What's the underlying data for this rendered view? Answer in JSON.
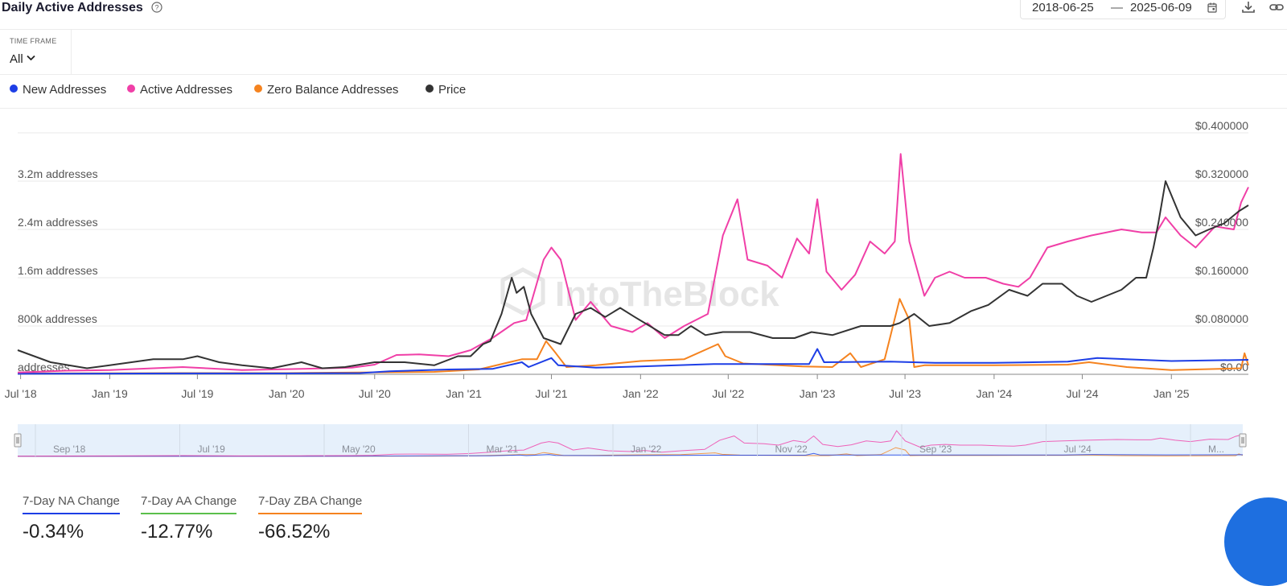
{
  "header": {
    "title": "Daily Active Addresses",
    "date_start": "2018-06-25",
    "date_separator": "—",
    "date_end": "2025-06-09"
  },
  "filters": {
    "time_frame_label": "TIME FRAME",
    "time_frame_value": "All"
  },
  "legend": [
    {
      "label": "New Addresses",
      "color": "#1d3ee6"
    },
    {
      "label": "Active Addresses",
      "color": "#f03fa7"
    },
    {
      "label": "Zero Balance Addresses",
      "color": "#f5831f"
    },
    {
      "label": "Price",
      "color": "#333333"
    }
  ],
  "watermark": "IntoTheBlock",
  "chart_data": {
    "type": "line",
    "x_tick_labels": [
      "Jul '18",
      "Jan '19",
      "Jul '19",
      "Jan '20",
      "Jul '20",
      "Jan '21",
      "Jul '21",
      "Jan '22",
      "Jul '22",
      "Jan '23",
      "Jul '23",
      "Jan '24",
      "Jul '24",
      "Jan '25"
    ],
    "y_left_tick_labels": [
      "addresses",
      "800k addresses",
      "1.6m addresses",
      "2.4m addresses",
      "3.2m addresses"
    ],
    "y_left_range": [
      0,
      4000000
    ],
    "y_right_tick_labels": [
      "$0.00",
      "$0.080000",
      "$0.160000",
      "$0.240000",
      "$0.320000",
      "$0.400000"
    ],
    "y_right_range": [
      0,
      0.4
    ],
    "x_range": [
      "2018-06-25",
      "2025-06-09"
    ],
    "grid": true,
    "legend_position": "top-left",
    "series": [
      {
        "name": "Active Addresses",
        "axis": "left",
        "x": [
          "2018-06-25",
          "2018-10-01",
          "2019-01-01",
          "2019-06-01",
          "2019-10-01",
          "2020-02-01",
          "2020-05-15",
          "2020-07-01",
          "2020-08-15",
          "2020-10-01",
          "2020-12-01",
          "2021-01-15",
          "2021-03-01",
          "2021-04-15",
          "2021-05-10",
          "2021-06-15",
          "2021-07-01",
          "2021-07-20",
          "2021-08-20",
          "2021-09-20",
          "2021-11-01",
          "2021-12-15",
          "2022-01-15",
          "2022-02-20",
          "2022-04-01",
          "2022-05-20",
          "2022-06-20",
          "2022-07-20",
          "2022-08-10",
          "2022-09-20",
          "2022-10-20",
          "2022-11-20",
          "2022-12-15",
          "2023-01-01",
          "2023-01-20",
          "2023-02-20",
          "2023-03-20",
          "2023-04-20",
          "2023-05-20",
          "2023-06-10",
          "2023-06-22",
          "2023-07-10",
          "2023-08-10",
          "2023-09-01",
          "2023-10-01",
          "2023-11-01",
          "2023-12-15",
          "2024-01-20",
          "2024-02-20",
          "2024-03-15",
          "2024-04-20",
          "2024-06-01",
          "2024-07-20",
          "2024-09-20",
          "2024-11-01",
          "2024-12-01",
          "2024-12-20",
          "2025-01-20",
          "2025-02-20",
          "2025-04-01",
          "2025-05-10",
          "2025-05-25",
          "2025-06-09"
        ],
        "y": [
          30000,
          60000,
          70000,
          120000,
          70000,
          90000,
          110000,
          160000,
          320000,
          330000,
          300000,
          400000,
          600000,
          850000,
          900000,
          1900000,
          2100000,
          1900000,
          900000,
          1200000,
          800000,
          700000,
          850000,
          600000,
          800000,
          1000000,
          2300000,
          2900000,
          1900000,
          1800000,
          1600000,
          2250000,
          2000000,
          2900000,
          1700000,
          1400000,
          1650000,
          2200000,
          2000000,
          2200000,
          3650000,
          2200000,
          1300000,
          1600000,
          1700000,
          1600000,
          1600000,
          1500000,
          1450000,
          1600000,
          2100000,
          2200000,
          2300000,
          2400000,
          2350000,
          2350000,
          2600000,
          2300000,
          2100000,
          2450000,
          2400000,
          2850000,
          3100000
        ]
      },
      {
        "name": "New Addresses",
        "axis": "left",
        "x": [
          "2018-06-25",
          "2019-06-01",
          "2020-01-01",
          "2020-06-01",
          "2020-08-01",
          "2020-12-01",
          "2021-03-01",
          "2021-05-01",
          "2021-05-15",
          "2021-07-01",
          "2021-07-15",
          "2021-10-01",
          "2022-01-01",
          "2022-06-01",
          "2022-12-15",
          "2023-01-01",
          "2023-01-15",
          "2023-06-01",
          "2023-09-01",
          "2024-01-01",
          "2024-06-01",
          "2024-08-01",
          "2025-01-01",
          "2025-06-09"
        ],
        "y": [
          10000,
          15000,
          15000,
          20000,
          50000,
          80000,
          90000,
          200000,
          120000,
          270000,
          150000,
          110000,
          130000,
          170000,
          170000,
          420000,
          200000,
          210000,
          190000,
          190000,
          210000,
          270000,
          220000,
          240000
        ]
      },
      {
        "name": "Zero Balance Addresses",
        "axis": "left",
        "x": [
          "2018-06-25",
          "2019-06-01",
          "2020-01-01",
          "2020-06-01",
          "2020-11-01",
          "2021-02-01",
          "2021-05-01",
          "2021-06-01",
          "2021-06-20",
          "2021-07-10",
          "2021-08-01",
          "2021-10-01",
          "2022-01-01",
          "2022-04-01",
          "2022-06-10",
          "2022-06-25",
          "2022-08-01",
          "2022-12-01",
          "2023-02-01",
          "2023-03-10",
          "2023-04-01",
          "2023-05-20",
          "2023-06-20",
          "2023-07-10",
          "2023-07-20",
          "2023-08-10",
          "2024-01-01",
          "2024-06-01",
          "2024-07-15",
          "2024-10-01",
          "2025-01-01",
          "2025-05-25",
          "2025-06-01",
          "2025-06-09"
        ],
        "y": [
          15000,
          20000,
          20000,
          30000,
          40000,
          80000,
          250000,
          250000,
          550000,
          350000,
          120000,
          150000,
          220000,
          250000,
          500000,
          300000,
          180000,
          130000,
          120000,
          350000,
          120000,
          250000,
          1250000,
          900000,
          120000,
          150000,
          150000,
          160000,
          200000,
          120000,
          70000,
          100000,
          350000,
          150000
        ]
      },
      {
        "name": "Price",
        "axis": "right",
        "x": [
          "2018-06-25",
          "2018-09-01",
          "2018-11-15",
          "2019-01-01",
          "2019-04-01",
          "2019-06-01",
          "2019-07-01",
          "2019-08-15",
          "2019-10-01",
          "2019-12-01",
          "2020-02-01",
          "2020-03-15",
          "2020-05-01",
          "2020-07-01",
          "2020-09-01",
          "2020-11-01",
          "2020-12-20",
          "2021-01-15",
          "2021-02-10",
          "2021-02-25",
          "2021-03-20",
          "2021-04-10",
          "2021-04-20",
          "2021-05-05",
          "2021-05-20",
          "2021-06-15",
          "2021-07-20",
          "2021-08-20",
          "2021-09-20",
          "2021-10-20",
          "2021-11-20",
          "2021-12-20",
          "2022-01-20",
          "2022-02-20",
          "2022-03-20",
          "2022-04-15",
          "2022-05-15",
          "2022-06-20",
          "2022-08-15",
          "2022-10-01",
          "2022-11-15",
          "2022-12-20",
          "2023-02-01",
          "2023-04-01",
          "2023-06-01",
          "2023-06-20",
          "2023-07-20",
          "2023-08-20",
          "2023-10-01",
          "2023-11-15",
          "2023-12-20",
          "2024-02-01",
          "2024-03-10",
          "2024-04-10",
          "2024-05-20",
          "2024-06-20",
          "2024-07-20",
          "2024-09-20",
          "2024-10-20",
          "2024-11-10",
          "2024-11-25",
          "2024-12-05",
          "2024-12-20",
          "2025-01-20",
          "2025-02-20",
          "2025-03-20",
          "2025-04-20",
          "2025-05-20",
          "2025-06-09"
        ],
        "y": [
          0.04,
          0.02,
          0.01,
          0.015,
          0.025,
          0.025,
          0.03,
          0.02,
          0.015,
          0.01,
          0.02,
          0.01,
          0.012,
          0.02,
          0.02,
          0.015,
          0.03,
          0.03,
          0.05,
          0.055,
          0.1,
          0.16,
          0.135,
          0.145,
          0.1,
          0.06,
          0.05,
          0.1,
          0.11,
          0.095,
          0.11,
          0.095,
          0.08,
          0.065,
          0.065,
          0.08,
          0.065,
          0.07,
          0.07,
          0.06,
          0.06,
          0.07,
          0.065,
          0.08,
          0.08,
          0.085,
          0.1,
          0.08,
          0.085,
          0.105,
          0.115,
          0.14,
          0.13,
          0.15,
          0.15,
          0.13,
          0.12,
          0.14,
          0.16,
          0.16,
          0.21,
          0.25,
          0.32,
          0.26,
          0.23,
          0.24,
          0.25,
          0.27,
          0.28
        ]
      }
    ]
  },
  "navigator": {
    "labels": [
      "Sep '18",
      "Jul '19",
      "May '20",
      "Mar '21",
      "Jan '22",
      "Nov '22",
      "Sep '23",
      "Jul '24",
      "M..."
    ]
  },
  "stats": [
    {
      "label": "7-Day NA Change",
      "value": "-0.34%",
      "color": "#1d3ee6"
    },
    {
      "label": "7-Day AA Change",
      "value": "-12.77%",
      "color": "#5bbf4b"
    },
    {
      "label": "7-Day ZBA Change",
      "value": "-66.52%",
      "color": "#f5831f"
    }
  ]
}
